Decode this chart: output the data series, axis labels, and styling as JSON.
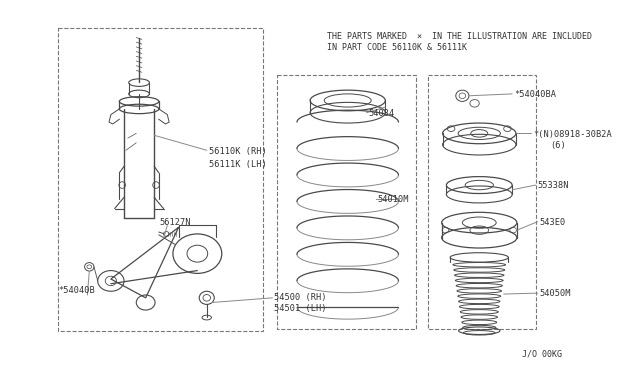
{
  "bg_color": "#ffffff",
  "line_color": "#4a4a4a",
  "text_color": "#333333",
  "light_line": "#888888",
  "header1": "THE PARTS MARKED  ×  IN THE ILLUSTRATION ARE INCLUDED",
  "header2": "IN PART CODE 56110K & 56111K",
  "footer": "J/O 00KG",
  "label_56110K": "56110K (RH)",
  "label_56111K": "56111K (LH)",
  "label_56127N": "56127N",
  "label_54040B": "*54040B",
  "label_54500": "54500 (RH)",
  "label_54501": "54501 (LH)",
  "label_54034": "54034",
  "label_54010M": "54010M",
  "label_54040BA": "*54040BA",
  "label_08918": "*(N)08918-30B2A",
  "label_08918b": "(6)",
  "label_55338N": "55338N",
  "label_543E0": "543E0",
  "label_54050M": "54050M"
}
